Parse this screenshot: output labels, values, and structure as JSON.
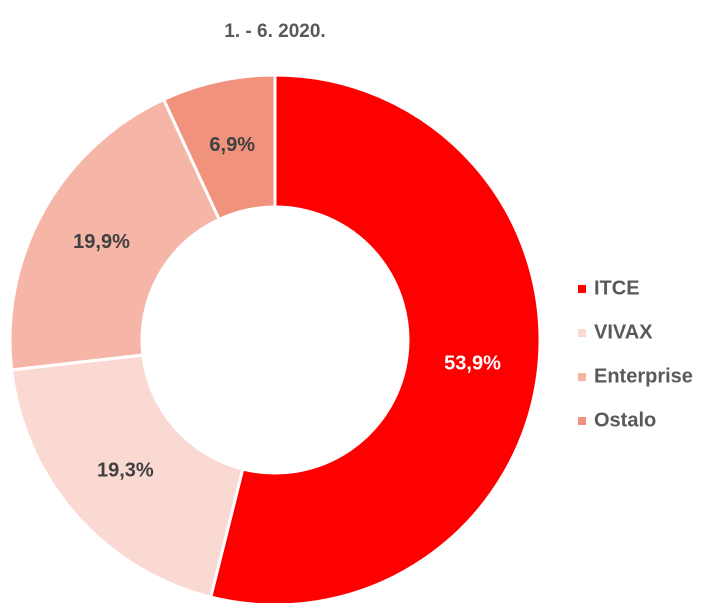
{
  "chart_data": {
    "type": "donut",
    "title": "1. - 6. 2020.",
    "categories": [
      "ITCE",
      "VIVAX",
      "Enterprise",
      "Ostalo"
    ],
    "values": [
      53.9,
      19.3,
      19.9,
      6.9
    ],
    "value_labels": [
      "53,9%",
      "19,3%",
      "19,9%",
      "6,9%"
    ],
    "colors": [
      "#ff0000",
      "#fbd9d3",
      "#f5b5a7",
      "#f0927c"
    ],
    "label_colors": [
      "#ffffff",
      "#404040",
      "#404040",
      "#404040"
    ],
    "legend": "right"
  }
}
